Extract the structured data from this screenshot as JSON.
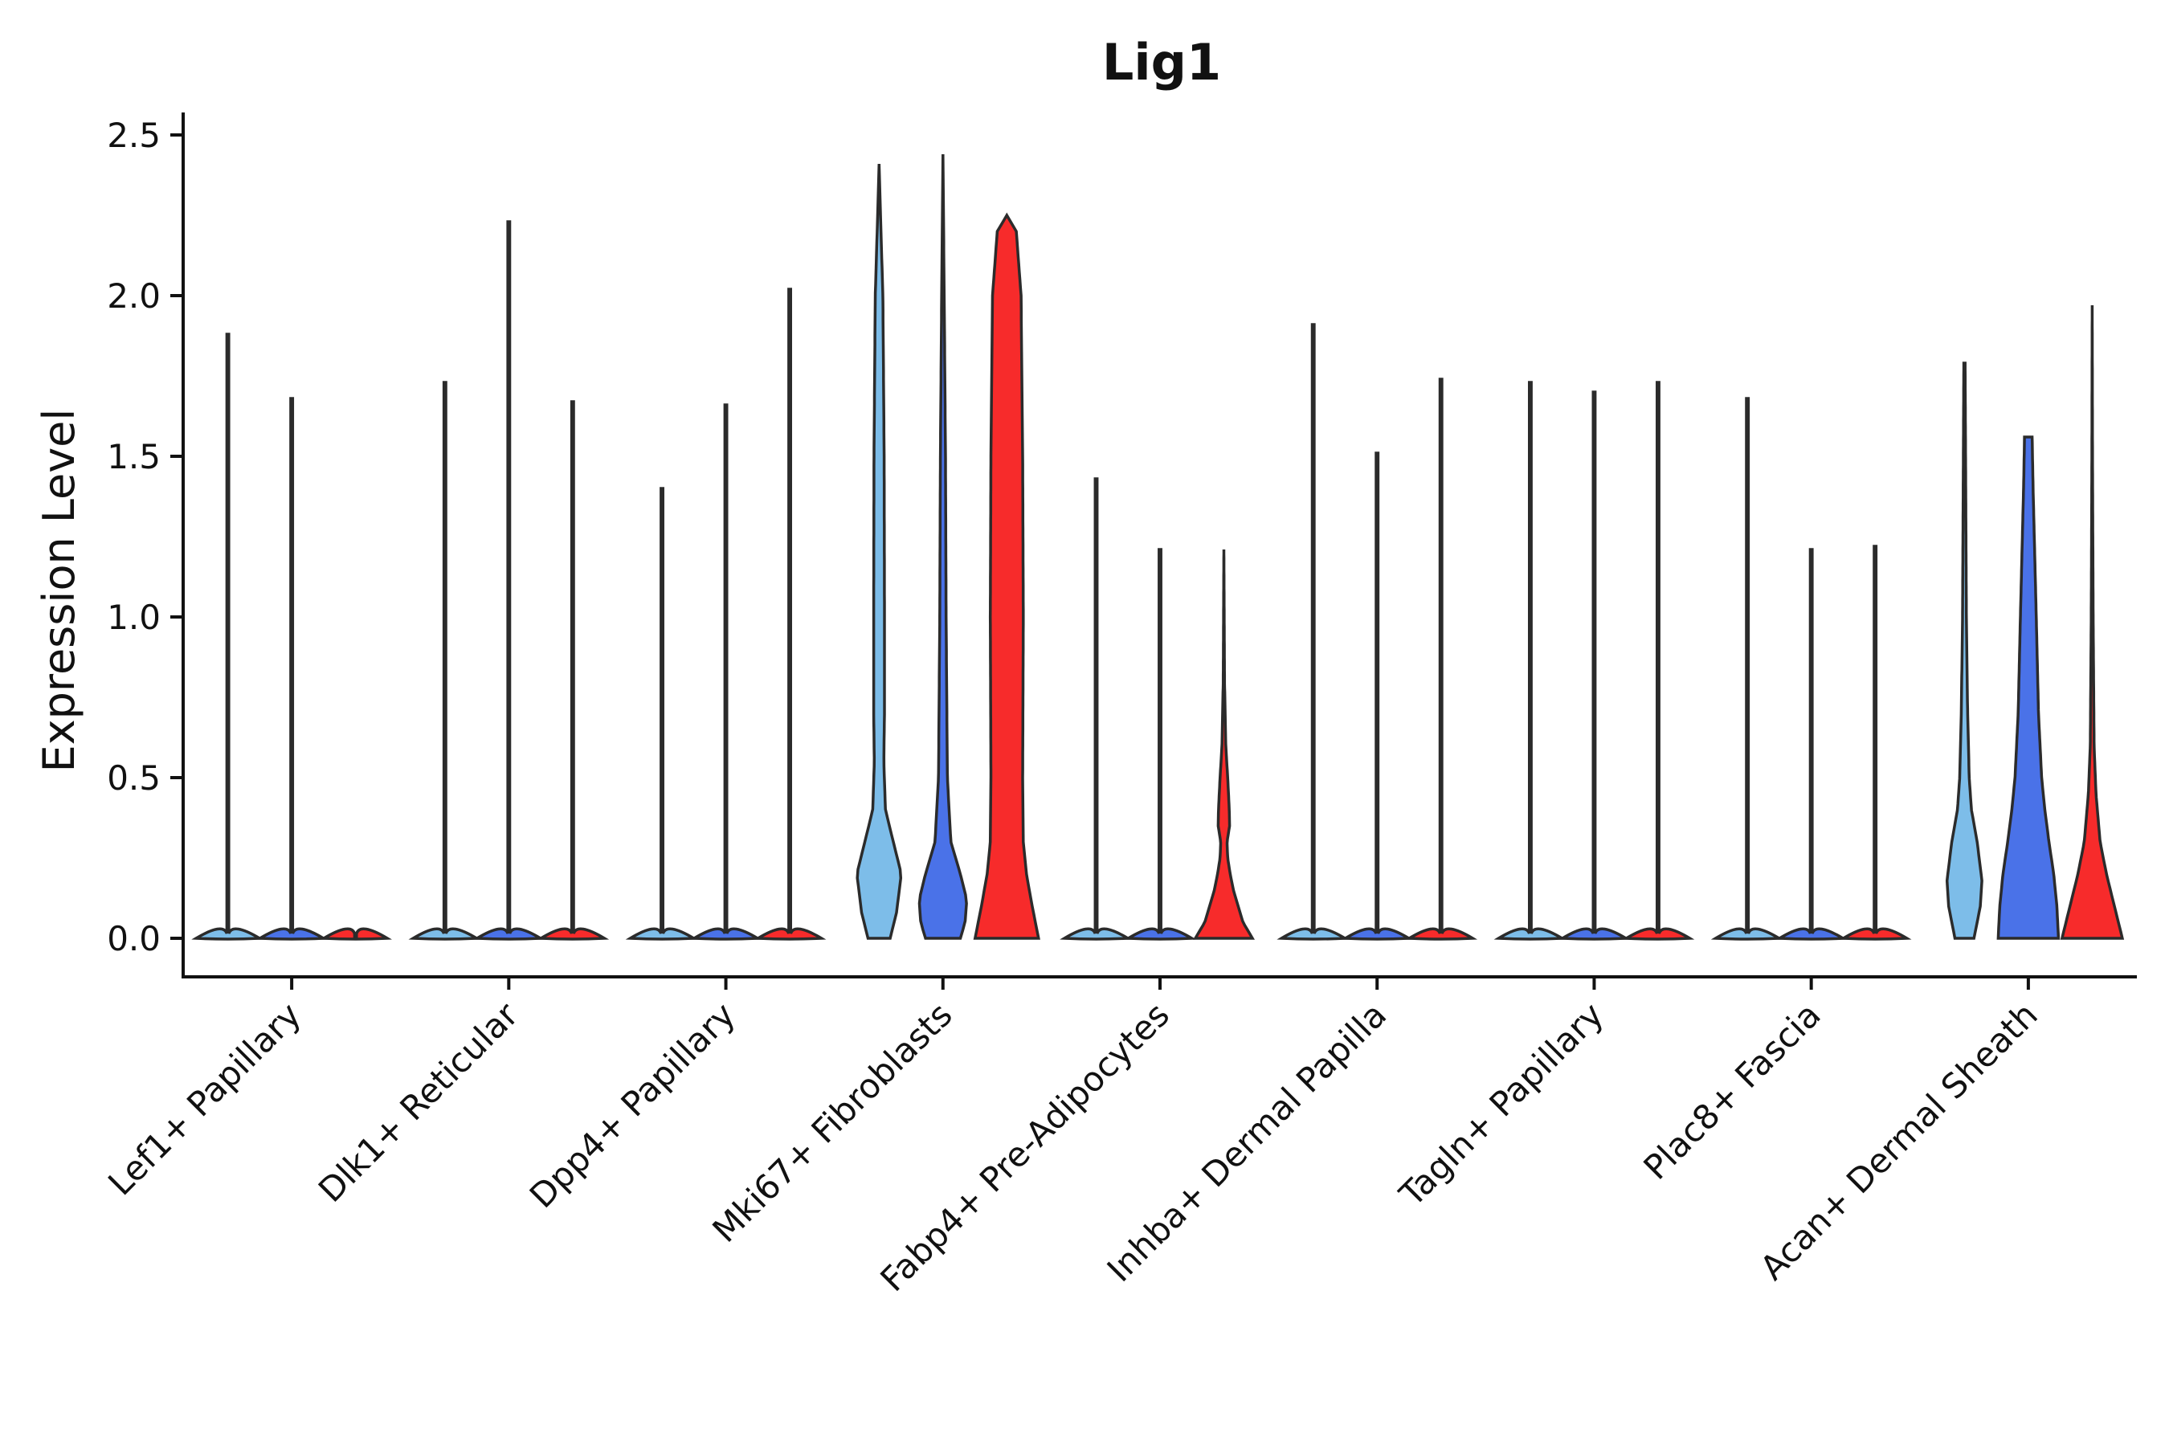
{
  "chart_data": {
    "type": "violin",
    "title": "Lig1",
    "xlabel": "",
    "ylabel": "Expression Level",
    "ylim": [
      -0.12,
      2.57
    ],
    "yticks": [
      0.0,
      0.5,
      1.0,
      1.5,
      2.0,
      2.5
    ],
    "ytick_labels": [
      "0.0",
      "0.5",
      "1.0",
      "1.5",
      "2.0",
      "2.5"
    ],
    "grid": false,
    "legend": "none",
    "colors": {
      "group1": "#7dbde9",
      "group2": "#4a72e8",
      "group3": "#f72b2b",
      "outline": "#2b2b2b"
    },
    "categories": [
      "Lef1+ Papillary",
      "Dlk1+ Reticular",
      "Dpp4+ Papillary",
      "Mki67+ Fibroblasts",
      "Fabp4+ Pre-Adipocytes",
      "Inhba+ Dermal Papilla",
      "Tagln+ Papillary",
      "Plac8+ Fascia",
      "Acan+ Dermal Sheath"
    ],
    "series": [
      {
        "name": "group1",
        "max_values": [
          1.88,
          1.73,
          1.4,
          2.41,
          1.43,
          1.91,
          1.73,
          1.68,
          1.79
        ],
        "density_profiles": [
          null,
          null,
          null,
          [
            [
              0,
              0.35
            ],
            [
              0.08,
              0.55
            ],
            [
              0.2,
              0.7
            ],
            [
              0.3,
              0.45
            ],
            [
              0.4,
              0.2
            ],
            [
              0.55,
              0.15
            ],
            [
              0.7,
              0.17
            ],
            [
              1.0,
              0.17
            ],
            [
              1.5,
              0.16
            ],
            [
              2.0,
              0.12
            ],
            [
              2.2,
              0.06
            ],
            [
              2.41,
              0.0
            ]
          ],
          null,
          null,
          null,
          null,
          [
            [
              0,
              0.3
            ],
            [
              0.1,
              0.5
            ],
            [
              0.18,
              0.55
            ],
            [
              0.3,
              0.4
            ],
            [
              0.4,
              0.22
            ],
            [
              0.5,
              0.15
            ],
            [
              0.7,
              0.1
            ],
            [
              1.0,
              0.06
            ],
            [
              1.4,
              0.04
            ],
            [
              1.79,
              0.02
            ]
          ]
        ]
      },
      {
        "name": "group2",
        "max_values": [
          1.68,
          2.23,
          1.66,
          2.44,
          1.21,
          1.51,
          1.7,
          1.21,
          1.56
        ],
        "density_profiles": [
          null,
          null,
          null,
          [
            [
              0,
              0.55
            ],
            [
              0.05,
              0.7
            ],
            [
              0.12,
              0.75
            ],
            [
              0.2,
              0.55
            ],
            [
              0.3,
              0.25
            ],
            [
              0.5,
              0.14
            ],
            [
              1.0,
              0.1
            ],
            [
              1.5,
              0.08
            ],
            [
              2.0,
              0.04
            ],
            [
              2.44,
              0.0
            ]
          ],
          null,
          null,
          null,
          null,
          [
            [
              0,
              0.95
            ],
            [
              0.1,
              0.9
            ],
            [
              0.2,
              0.8
            ],
            [
              0.3,
              0.65
            ],
            [
              0.4,
              0.52
            ],
            [
              0.5,
              0.42
            ],
            [
              0.7,
              0.32
            ],
            [
              1.0,
              0.25
            ],
            [
              1.2,
              0.2
            ],
            [
              1.4,
              0.15
            ],
            [
              1.56,
              0.12
            ]
          ]
        ]
      },
      {
        "name": "group3",
        "max_values": [
          0.0,
          1.67,
          2.02,
          2.25,
          1.21,
          1.74,
          1.73,
          1.22,
          1.97
        ],
        "density_profiles": [
          null,
          null,
          null,
          [
            [
              0,
              1.0
            ],
            [
              0.05,
              0.9
            ],
            [
              0.1,
              0.8
            ],
            [
              0.2,
              0.62
            ],
            [
              0.3,
              0.52
            ],
            [
              0.5,
              0.5
            ],
            [
              1.0,
              0.52
            ],
            [
              1.5,
              0.5
            ],
            [
              2.0,
              0.45
            ],
            [
              2.2,
              0.3
            ],
            [
              2.25,
              0.0
            ]
          ],
          [
            [
              0,
              0.9
            ],
            [
              0.05,
              0.6
            ],
            [
              0.1,
              0.45
            ],
            [
              0.15,
              0.3
            ],
            [
              0.2,
              0.2
            ],
            [
              0.25,
              0.12
            ],
            [
              0.3,
              0.1
            ],
            [
              0.35,
              0.18
            ],
            [
              0.4,
              0.17
            ],
            [
              0.5,
              0.12
            ],
            [
              0.6,
              0.06
            ],
            [
              0.8,
              0.02
            ],
            [
              1.21,
              0.0
            ]
          ],
          null,
          null,
          null,
          [
            [
              0,
              0.95
            ],
            [
              0.1,
              0.7
            ],
            [
              0.2,
              0.45
            ],
            [
              0.3,
              0.25
            ],
            [
              0.45,
              0.12
            ],
            [
              0.6,
              0.06
            ],
            [
              1.0,
              0.03
            ],
            [
              1.5,
              0.01
            ],
            [
              1.97,
              0.0
            ]
          ]
        ]
      }
    ]
  }
}
